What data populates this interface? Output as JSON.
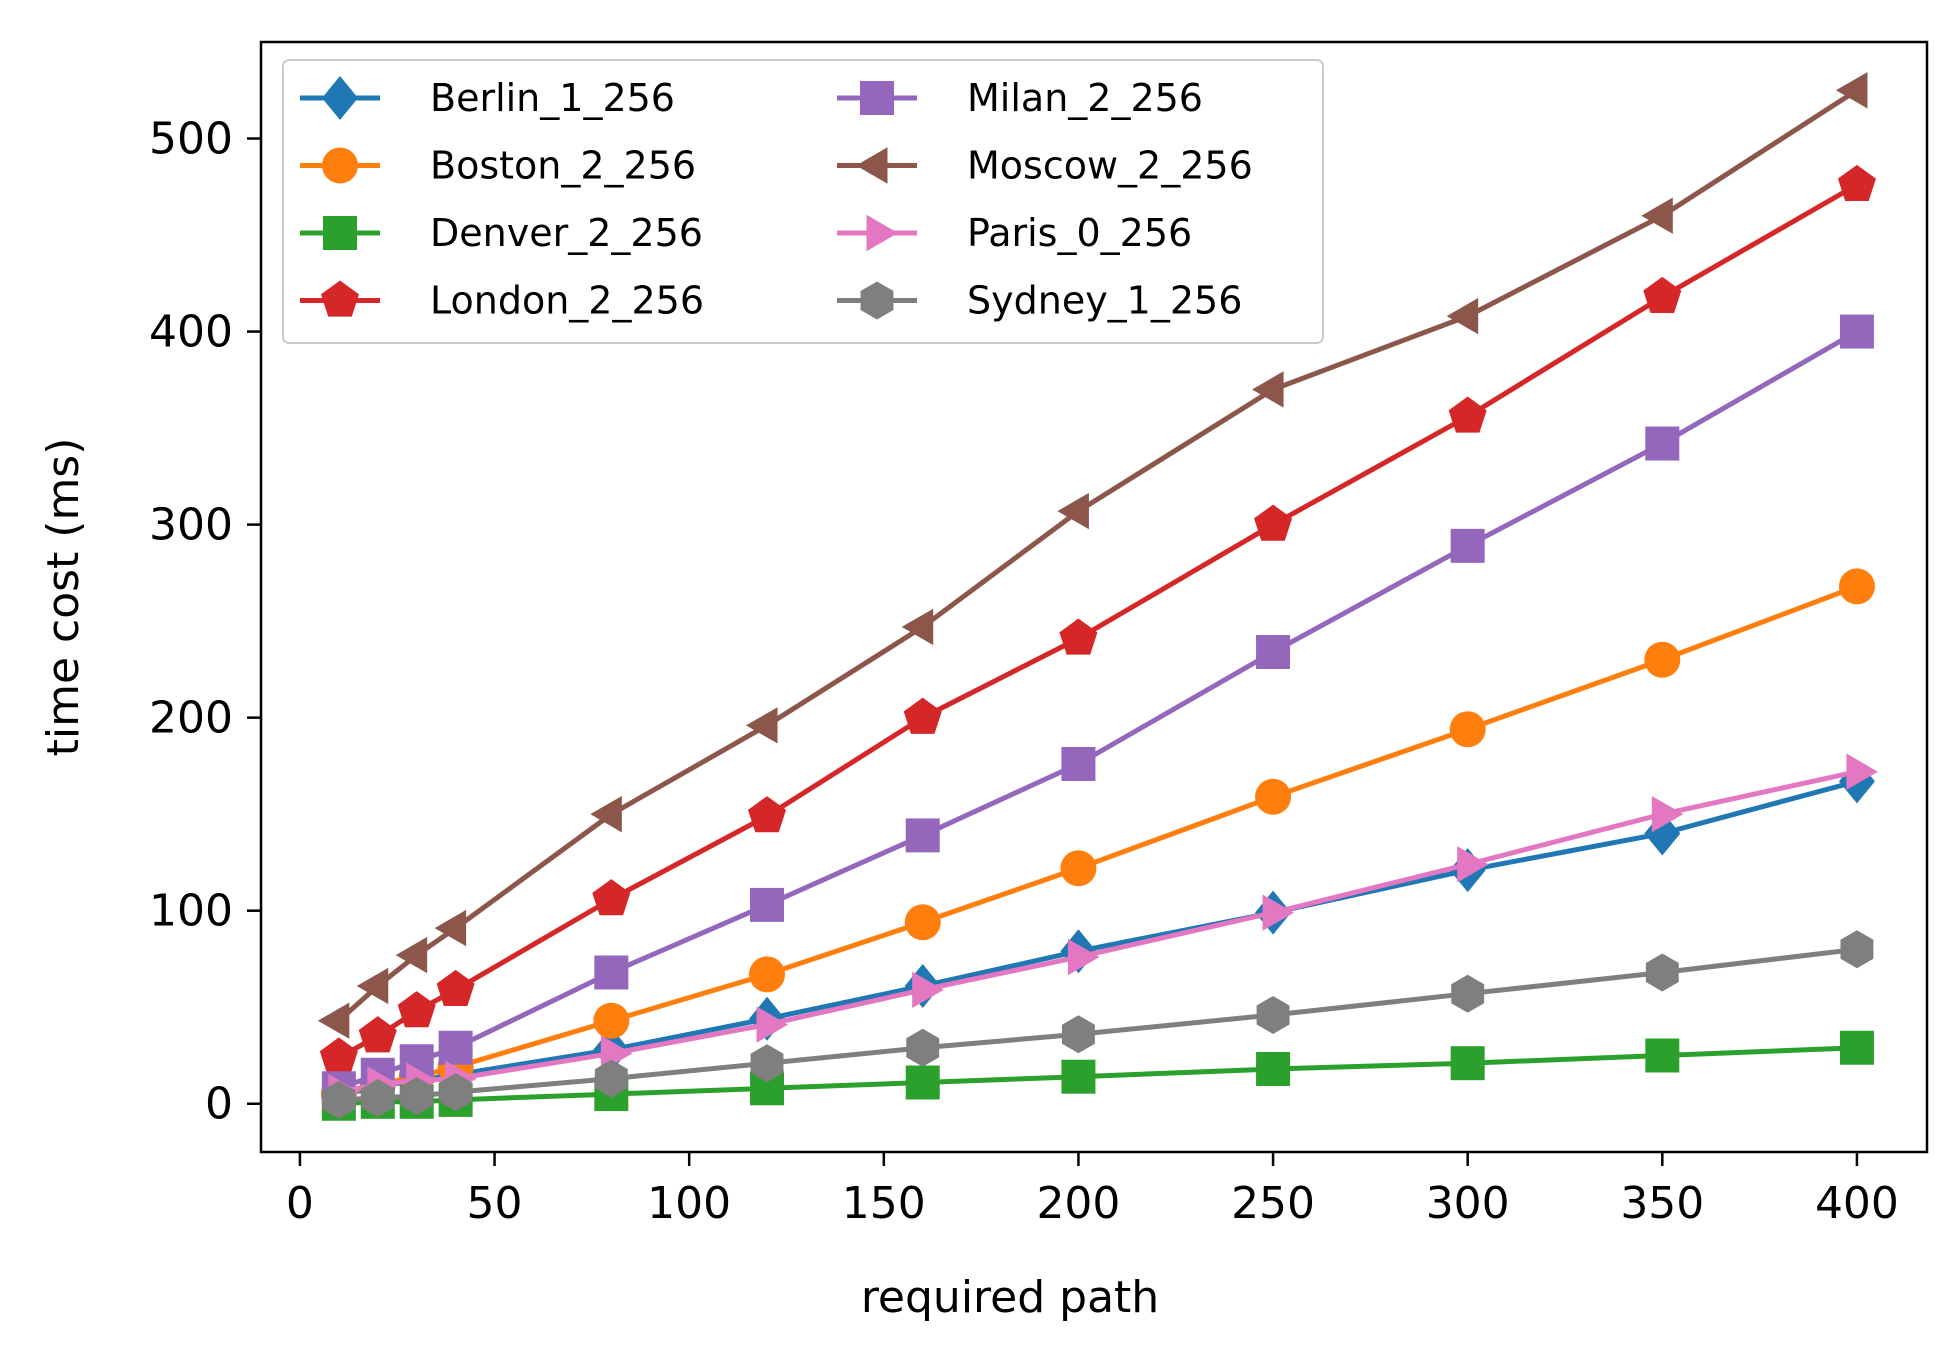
{
  "chart_data": {
    "type": "line",
    "title": "",
    "xlabel": "required path",
    "ylabel": "time cost (ms)",
    "xlim": [
      -10,
      418
    ],
    "ylim": [
      -25,
      550
    ],
    "xticks": [
      0,
      50,
      100,
      150,
      200,
      250,
      300,
      350,
      400
    ],
    "yticks": [
      0,
      100,
      200,
      300,
      400,
      500
    ],
    "x": [
      10,
      20,
      30,
      40,
      80,
      120,
      160,
      200,
      250,
      300,
      350,
      400
    ],
    "grid": false,
    "legend_position": "upper-left",
    "legend_columns": 2,
    "series": [
      {
        "name": "Berlin_1_256",
        "color": "#1f77b4",
        "marker": "diamond",
        "values": [
          4,
          9,
          12,
          15,
          28,
          44,
          61,
          79,
          99,
          121,
          140,
          167
        ]
      },
      {
        "name": "Boston_2_256",
        "color": "#ff7f0e",
        "marker": "circle",
        "values": [
          5,
          10,
          14,
          19,
          43,
          67,
          94,
          122,
          159,
          194,
          230,
          268
        ]
      },
      {
        "name": "Denver_2_256",
        "color": "#2ca02c",
        "marker": "square",
        "values": [
          0,
          1,
          1,
          2,
          5,
          8,
          11,
          14,
          18,
          21,
          25,
          29
        ]
      },
      {
        "name": "London_2_256",
        "color": "#d62728",
        "marker": "pentagon",
        "values": [
          24,
          35,
          48,
          59,
          106,
          149,
          200,
          241,
          300,
          356,
          418,
          476
        ]
      },
      {
        "name": "Milan_2_256",
        "color": "#9467bd",
        "marker": "square",
        "values": [
          8,
          15,
          22,
          29,
          68,
          103,
          139,
          176,
          234,
          289,
          342,
          400
        ]
      },
      {
        "name": "Moscow_2_256",
        "color": "#8c564b",
        "marker": "triangle-left",
        "values": [
          43,
          61,
          77,
          91,
          150,
          196,
          247,
          307,
          370,
          408,
          460,
          525
        ]
      },
      {
        "name": "Paris_0_256",
        "color": "#e377c2",
        "marker": "triangle-right",
        "values": [
          6,
          10,
          12,
          13,
          26,
          41,
          59,
          76,
          99,
          124,
          150,
          172
        ]
      },
      {
        "name": "Sydney_1_256",
        "color": "#7f7f7f",
        "marker": "hexagon",
        "values": [
          2,
          3,
          4,
          6,
          13,
          21,
          29,
          36,
          46,
          57,
          68,
          80
        ]
      }
    ]
  }
}
